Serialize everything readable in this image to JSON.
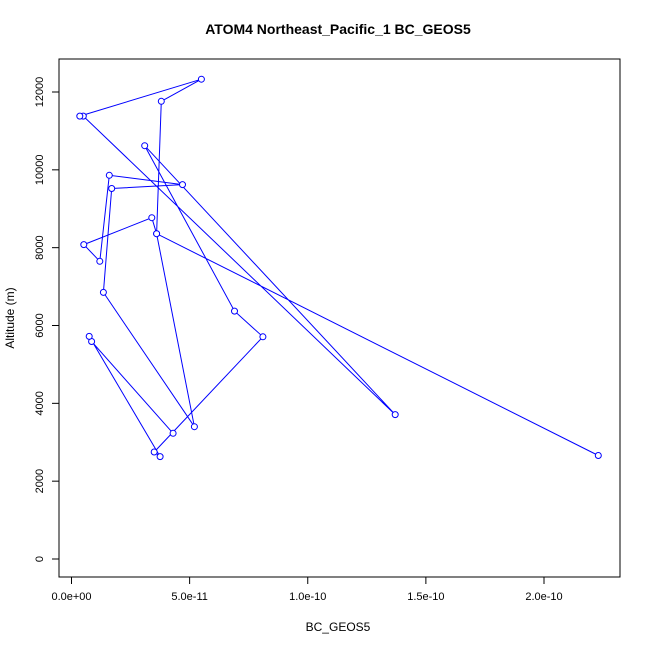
{
  "chart_data": {
    "type": "line",
    "title": "ATOM4 Northeast_Pacific_1 BC_GEOS5",
    "xlabel": "BC_GEOS5",
    "ylabel": "Altitude (m)",
    "xlim": [
      0,
      2.3e-10
    ],
    "ylim": [
      0,
      12600
    ],
    "x_ticks": [
      0,
      5e-11,
      1e-10,
      1.5e-10,
      2e-10
    ],
    "x_tick_labels": [
      "0.0e+00",
      "5.0e-11",
      "1.0e-10",
      "1.5e-10",
      "2.0e-10"
    ],
    "y_ticks": [
      0,
      2000,
      4000,
      6000,
      8000,
      10000,
      12000
    ],
    "y_tick_labels": [
      "0",
      "2000",
      "4000",
      "6000",
      "8000",
      "10000",
      "12000"
    ],
    "grid": false,
    "legend": "none",
    "color": "#0000ff",
    "series": [
      {
        "x": [
          4.3e-11,
          8.5e-12,
          7.5e-12,
          3.75e-11,
          3.5e-11,
          8.1e-11,
          6.9e-11,
          3.1e-11,
          1.37e-10,
          5e-12,
          3.5e-12,
          5.5e-11,
          3.8e-11,
          3.6e-11,
          5.2e-11,
          1.35e-11,
          1.7e-11,
          4.7e-11,
          1.6e-11,
          1.2e-11,
          5.2e-12,
          3.4e-11,
          3.6e-11,
          2.23e-10
        ],
        "y": [
          3230,
          5590,
          5720,
          2630,
          2750,
          5710,
          6370,
          10620,
          3710,
          11380,
          11380,
          12330,
          11760,
          8360,
          3400,
          6850,
          9520,
          9620,
          9860,
          7650,
          8080,
          8770,
          8360,
          2660
        ]
      }
    ]
  }
}
